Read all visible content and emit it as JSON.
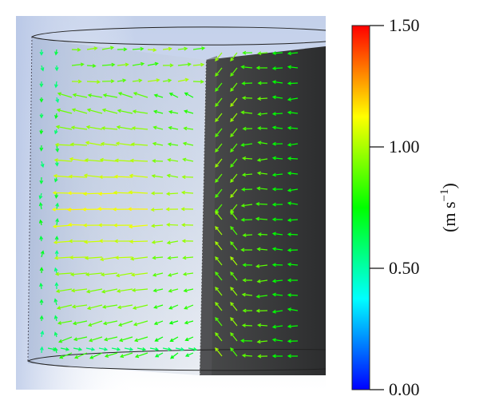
{
  "figure": {
    "type": "cfd-velocity-vector-field",
    "colorbar": {
      "min": 0.0,
      "max": 1.5,
      "ticks": [
        "0.00",
        "0.50",
        "1.00",
        "1.50"
      ],
      "tick_values": [
        0.0,
        0.5,
        1.0,
        1.5
      ],
      "unit_base": "(m s",
      "unit_exponent": "−1",
      "unit_close": ")",
      "colormap": [
        "#0000ff",
        "#00ffff",
        "#00ff00",
        "#ffff00",
        "#ff0000"
      ]
    },
    "colors": {
      "background_top": "#c9d6ee",
      "background_bottom": "#ffffff",
      "dark_block": "#3e3f40",
      "arrow_slow": "#29d4c8",
      "arrow_mid": "#9ee02a",
      "arrow_fast": "#f0a020"
    }
  }
}
